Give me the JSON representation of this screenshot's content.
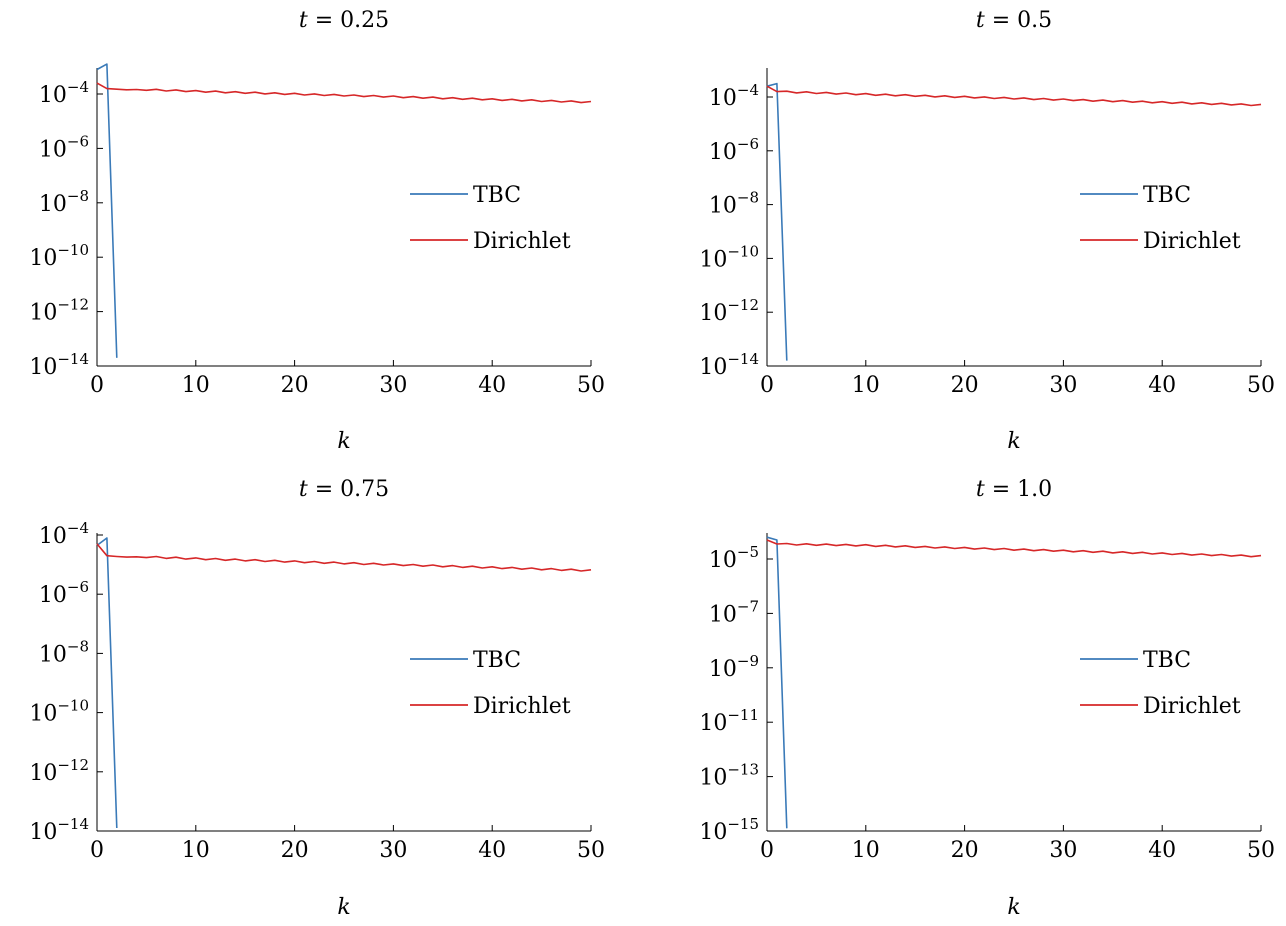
{
  "chart_data": [
    {
      "type": "line",
      "title_var": "t",
      "title_value": "0.25",
      "xlabel": "k",
      "ylabel": "",
      "xlim": [
        0,
        50
      ],
      "ylim_exp": [
        -14,
        -3
      ],
      "log_y": true,
      "x_ticks": [
        0,
        10,
        20,
        30,
        40,
        50
      ],
      "y_tick_exps": [
        -14,
        -12,
        -10,
        -8,
        -6,
        -4
      ],
      "legend_position": "center-right",
      "series": [
        {
          "name": "TBC",
          "color": "#3a7ab8",
          "x": [
            0,
            1,
            2
          ],
          "log10_y": [
            -3.1,
            -2.9,
            -13.7
          ]
        },
        {
          "name": "Dirichlet",
          "color": "#d62728",
          "x": [
            0,
            1,
            2,
            3,
            4,
            5,
            10,
            20,
            30,
            40,
            50
          ],
          "log10_y": [
            -3.6,
            -3.8,
            -3.85,
            -3.82,
            -3.86,
            -3.84,
            -3.9,
            -4.0,
            -4.1,
            -4.2,
            -4.3
          ]
        }
      ]
    },
    {
      "type": "line",
      "title_var": "t",
      "title_value": "0.5",
      "xlabel": "k",
      "ylabel": "",
      "xlim": [
        0,
        50
      ],
      "ylim_exp": [
        -14,
        -3
      ],
      "log_y": true,
      "x_ticks": [
        0,
        10,
        20,
        30,
        40,
        50
      ],
      "y_tick_exps": [
        -14,
        -12,
        -10,
        -8,
        -6,
        -4
      ],
      "legend_position": "center-right",
      "series": [
        {
          "name": "TBC",
          "color": "#3a7ab8",
          "x": [
            0,
            1,
            2
          ],
          "log10_y": [
            -3.6,
            -3.5,
            -13.8
          ]
        },
        {
          "name": "Dirichlet",
          "color": "#d62728",
          "x": [
            0,
            1,
            10,
            20,
            30,
            40,
            50
          ],
          "log10_y": [
            -3.6,
            -3.8,
            -3.9,
            -4.0,
            -4.1,
            -4.2,
            -4.3
          ]
        }
      ]
    },
    {
      "type": "line",
      "title_var": "t",
      "title_value": "0.75",
      "xlabel": "k",
      "ylabel": "",
      "xlim": [
        0,
        50
      ],
      "ylim_exp": [
        -14,
        -4
      ],
      "log_y": true,
      "x_ticks": [
        0,
        10,
        20,
        30,
        40,
        50
      ],
      "y_tick_exps": [
        -14,
        -12,
        -10,
        -8,
        -6,
        -4
      ],
      "legend_position": "center-right",
      "series": [
        {
          "name": "TBC",
          "color": "#3a7ab8",
          "x": [
            0,
            1,
            2
          ],
          "log10_y": [
            -4.35,
            -4.1,
            -13.9
          ]
        },
        {
          "name": "Dirichlet",
          "color": "#d62728",
          "x": [
            0,
            1,
            2,
            3,
            4,
            5,
            10,
            20,
            30,
            40,
            50
          ],
          "log10_y": [
            -4.3,
            -4.7,
            -4.75,
            -4.72,
            -4.76,
            -4.74,
            -4.8,
            -4.9,
            -5.0,
            -5.1,
            -5.2
          ]
        }
      ]
    },
    {
      "type": "line",
      "title_var": "t",
      "title_value": "1.0",
      "xlabel": "k",
      "ylabel": "",
      "xlim": [
        0,
        50
      ],
      "ylim_exp": [
        -15,
        -4
      ],
      "log_y": true,
      "x_ticks": [
        0,
        10,
        20,
        30,
        40,
        50
      ],
      "y_tick_exps": [
        -15,
        -13,
        -11,
        -9,
        -7,
        -5
      ],
      "legend_position": "center-right",
      "series": [
        {
          "name": "TBC",
          "color": "#3a7ab8",
          "x": [
            0,
            1,
            2
          ],
          "log10_y": [
            -4.2,
            -4.3,
            -14.9
          ]
        },
        {
          "name": "Dirichlet",
          "color": "#d62728",
          "x": [
            0,
            1,
            10,
            20,
            30,
            40,
            50
          ],
          "log10_y": [
            -4.3,
            -4.45,
            -4.5,
            -4.6,
            -4.7,
            -4.8,
            -4.9
          ]
        }
      ]
    }
  ]
}
